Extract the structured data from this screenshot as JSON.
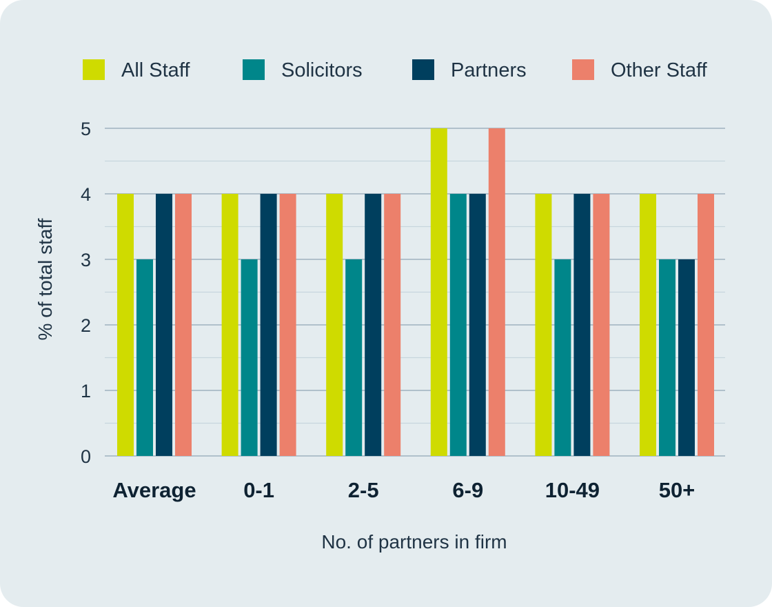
{
  "chart_data": {
    "type": "bar",
    "title": "",
    "xlabel": "No. of partners in firm",
    "ylabel": "% of total staff",
    "categories": [
      "Average",
      "0-1",
      "2-5",
      "6-9",
      "10-49",
      "50+"
    ],
    "series": [
      {
        "name": "All Staff",
        "color": "#cfdb00",
        "values": [
          4,
          4,
          4,
          5,
          4,
          4
        ]
      },
      {
        "name": "Solicitors",
        "color": "#00868a",
        "values": [
          3,
          3,
          3,
          4,
          3,
          3
        ]
      },
      {
        "name": "Partners",
        "color": "#003f5e",
        "values": [
          4,
          4,
          4,
          4,
          4,
          3
        ]
      },
      {
        "name": "Other Staff",
        "color": "#ec806b",
        "values": [
          4,
          4,
          4,
          5,
          4,
          4
        ]
      }
    ],
    "ylim": [
      0,
      5
    ],
    "yticks": [
      0,
      1,
      2,
      3,
      4,
      5
    ],
    "grid": true,
    "legend": "top"
  }
}
